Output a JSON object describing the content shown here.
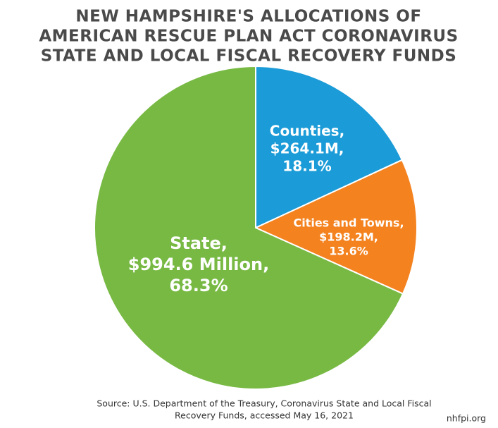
{
  "chart_data": {
    "type": "pie",
    "title": [
      "NEW HAMPSHIRE'S ALLOCATIONS OF",
      "AMERICAN RESCUE PLAN ACT CORONAVIRUS",
      "STATE AND LOCAL FISCAL RECOVERY FUNDS"
    ],
    "categories": [
      "Counties,",
      "Cities and Towns,",
      "State,"
    ],
    "amounts": [
      264.1,
      198.2,
      994.6
    ],
    "amount_labels": [
      "$264.1M,",
      "$198.2M,",
      "$994.6 Million,"
    ],
    "values": [
      18.1,
      13.6,
      68.3
    ],
    "value_labels": [
      "18.1%",
      "13.6%",
      "68.3%"
    ],
    "colors": [
      "#1b9bd7",
      "#f4821f",
      "#77b943"
    ],
    "source": [
      "Source: U.S. Department of the Treasury, Coronavirus State and Local Fiscal",
      "Recovery Funds, accessed May 16, 2021"
    ],
    "credit": "nhfpi.org"
  }
}
